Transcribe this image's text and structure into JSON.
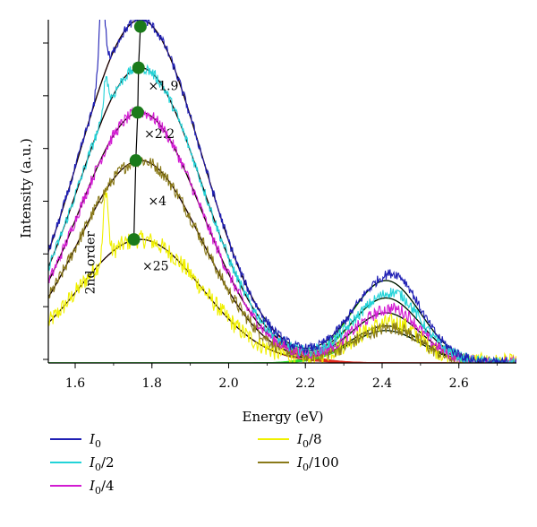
{
  "chart_data": {
    "type": "line",
    "xlabel": "Energy (eV)",
    "ylabel": "Intensity (a.u.)",
    "xlim": [
      1.53,
      2.75
    ],
    "ylim": [
      0,
      1.0
    ],
    "xticks": [
      "1.6",
      "1.8",
      "2.0",
      "2.2",
      "2.4",
      "2.6"
    ],
    "xtick_values": [
      1.6,
      1.8,
      2.0,
      2.2,
      2.4,
      2.6
    ],
    "series": [
      {
        "name": "I0",
        "color": "#1f1fb4",
        "scale": 1.0,
        "rel": 0.24,
        "noise": 0.01
      },
      {
        "name": "I0/2",
        "color": "#22d3d8",
        "scale": 0.86,
        "rel": 0.22,
        "noise": 0.013
      },
      {
        "name": "I0/4",
        "color": "#d21bd2",
        "scale": 0.73,
        "rel": 0.2,
        "noise": 0.016
      },
      {
        "name": "I0/100",
        "color": "#8a7a1a",
        "scale": 0.59,
        "rel": 0.16,
        "noise": 0.02
      },
      {
        "name": "I0/8",
        "color": "#f0f000",
        "scale": 0.36,
        "rel": 0.3,
        "noise": 0.035
      }
    ],
    "fit_peak": {
      "center": 1.77,
      "width": 0.16,
      "color": "#e0281c"
    },
    "fit_peak2": {
      "center": 2.41,
      "width": 0.09,
      "color": "#2ee02e"
    },
    "sum_fit_color": "#000000",
    "peak_markers": {
      "color": "#1a7a1a",
      "points": [
        [
          1.77,
          0.98
        ],
        [
          1.765,
          0.86
        ],
        [
          1.763,
          0.73
        ],
        [
          1.758,
          0.59
        ],
        [
          1.753,
          0.36
        ]
      ]
    },
    "annotations": [
      {
        "text": "×1.9",
        "x": 1.79,
        "y": 0.795
      },
      {
        "text": "×2.2",
        "x": 1.78,
        "y": 0.655
      },
      {
        "text": "×4",
        "x": 1.79,
        "y": 0.46
      },
      {
        "text": "×25",
        "x": 1.775,
        "y": 0.27
      },
      {
        "text": "2nd order",
        "x": 1.65,
        "y": 0.2,
        "rotate": -90
      }
    ],
    "legend": {
      "placement": "bottom",
      "items": [
        {
          "label": "I",
          "sub": "0",
          "suffix": "",
          "color": "#1f1fb4"
        },
        {
          "label": "I",
          "sub": "0",
          "suffix": "/2",
          "color": "#22d3d8"
        },
        {
          "label": "I",
          "sub": "0",
          "suffix": "/4",
          "color": "#d21bd2"
        },
        {
          "label": "I",
          "sub": "0",
          "suffix": "/8",
          "color": "#f0f000"
        },
        {
          "label": "I",
          "sub": "0",
          "suffix": "/100",
          "color": "#8a7a1a"
        }
      ]
    }
  }
}
